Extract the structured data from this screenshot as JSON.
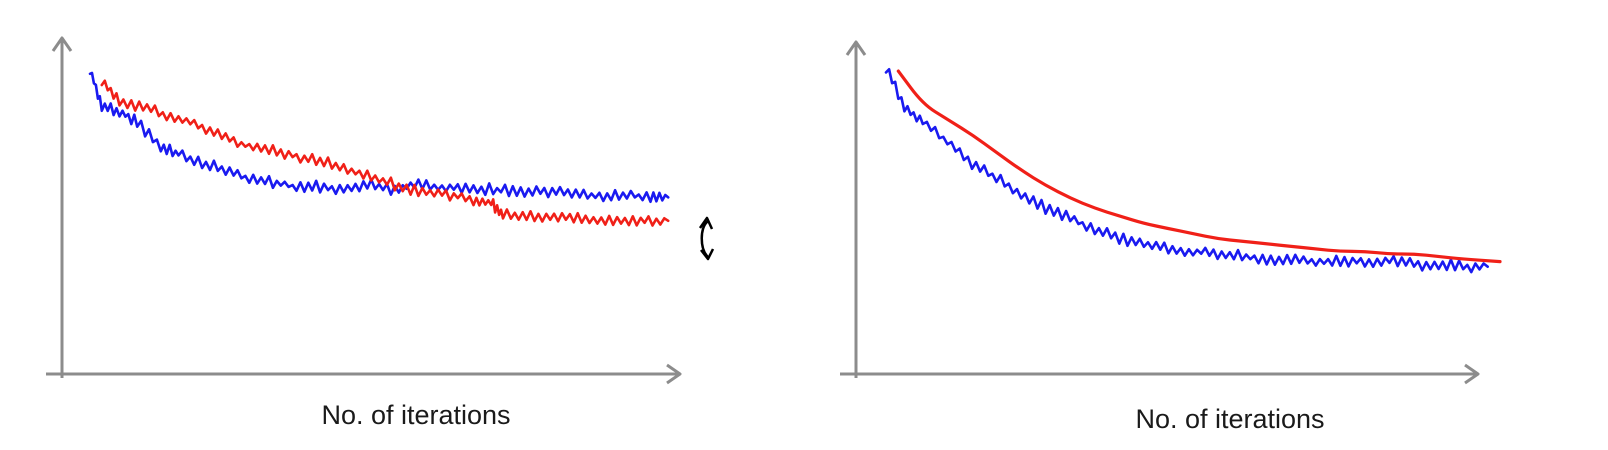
{
  "colors": {
    "axis": "#8c8c8c",
    "series_a": "#1a1af0",
    "series_b": "#f02018",
    "annotation": "#000000"
  },
  "chart_data": [
    {
      "type": "line",
      "title": "",
      "xlabel": "No. of iterations",
      "ylabel": "",
      "xlim": [
        0,
        100
      ],
      "ylim": [
        0,
        100
      ],
      "grid": false,
      "legend": "none",
      "annotation": "double-headed arrow at right end between the two curves",
      "series": [
        {
          "color": "#1a1af0",
          "style": "noisy",
          "x": [
            0,
            2,
            5,
            8,
            12,
            15,
            19,
            23,
            27,
            31,
            35,
            39,
            43,
            47,
            51,
            55,
            59,
            63,
            67,
            71,
            75,
            79,
            83,
            87,
            91,
            95,
            98
          ],
          "y": [
            100,
            86,
            84,
            80,
            70,
            68,
            64,
            62,
            58,
            57,
            55,
            55,
            54,
            56,
            54,
            56,
            55,
            55,
            54,
            54,
            53,
            53,
            52,
            51,
            52,
            51,
            51
          ]
        },
        {
          "color": "#f02018",
          "style": "noisy",
          "x": [
            2,
            5,
            9,
            13,
            17,
            21,
            25,
            29,
            33,
            37,
            41,
            45,
            49,
            53,
            57,
            61,
            65,
            68,
            70,
            74,
            78,
            82,
            86,
            90,
            94,
            98
          ],
          "y": [
            96,
            88,
            86,
            82,
            80,
            76,
            72,
            70,
            68,
            66,
            64,
            61,
            58,
            55,
            53,
            52,
            50,
            49,
            44,
            44,
            43,
            43,
            42,
            42,
            42,
            42
          ]
        }
      ]
    },
    {
      "type": "line",
      "title": "",
      "xlabel": "No. of iterations",
      "ylabel": "",
      "xlim": [
        0,
        100
      ],
      "ylim": [
        0,
        100
      ],
      "grid": false,
      "legend": "none",
      "series": [
        {
          "color": "#1a1af0",
          "style": "noisy",
          "x": [
            0,
            3,
            6,
            10,
            14,
            18,
            22,
            26,
            30,
            34,
            38,
            42,
            46,
            50,
            54,
            58,
            62,
            66,
            70,
            74,
            78,
            82,
            86,
            90,
            94,
            98
          ],
          "y": [
            100,
            84,
            78,
            70,
            62,
            56,
            50,
            44,
            40,
            36,
            32,
            30,
            28,
            27,
            26,
            25,
            24,
            24,
            23,
            23,
            23,
            23,
            22,
            22,
            21,
            21
          ]
        },
        {
          "color": "#f02018",
          "style": "smooth",
          "x": [
            2,
            6,
            10,
            14,
            18,
            22,
            26,
            30,
            34,
            38,
            42,
            46,
            50,
            54,
            58,
            62,
            66,
            70,
            74,
            78,
            82,
            86,
            90,
            94,
            100
          ],
          "y": [
            98,
            85,
            79,
            73,
            66,
            59,
            53,
            48,
            44,
            41,
            38,
            36,
            34,
            32,
            31,
            30,
            29,
            28,
            27,
            27,
            26,
            26,
            25,
            24,
            23
          ]
        }
      ]
    }
  ]
}
